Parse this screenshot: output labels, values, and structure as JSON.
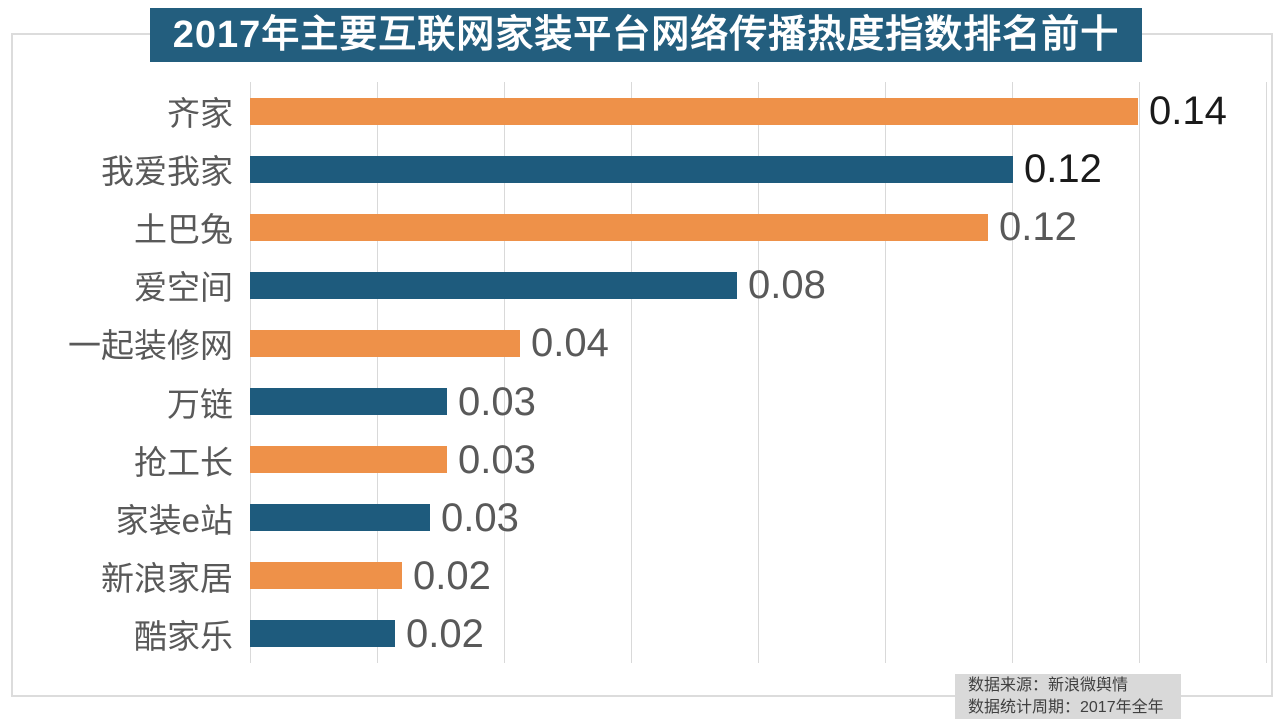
{
  "title": {
    "text": "2017年主要互联网家装平台网络传播热度指数排名前十",
    "bg_color": "#235E7E",
    "text_color": "#FFFFFF"
  },
  "chart_data": {
    "type": "bar",
    "orientation": "horizontal",
    "title": "2017年主要互联网家装平台网络传播热度指数排名前十",
    "categories": [
      "齐家",
      "我爱我家",
      "土巴兔",
      "爱空间",
      "一起装修网",
      "万链",
      "抢工长",
      "家装e站",
      "新浪家居",
      "酷家乐"
    ],
    "values": [
      0.14,
      0.12,
      0.12,
      0.08,
      0.04,
      0.03,
      0.03,
      0.03,
      0.02,
      0.02
    ],
    "value_labels": [
      "0.14",
      "0.12",
      "0.12",
      "0.08",
      "0.04",
      "0.03",
      "0.03",
      "0.03",
      "0.02",
      "0.02"
    ],
    "bar_lengths_est": [
      0.1398,
      0.1202,
      0.1162,
      0.0767,
      0.0425,
      0.031,
      0.031,
      0.0283,
      0.0239,
      0.0228
    ],
    "bar_colors": [
      "#EE9149",
      "#1E5B7D",
      "#EE9149",
      "#1E5B7D",
      "#EE9149",
      "#1E5B7D",
      "#EE9149",
      "#1E5B7D",
      "#EE9149",
      "#1E5B7D"
    ],
    "value_label_colors": [
      "#1A1A1A",
      "#1A1A1A",
      "#595959",
      "#595959",
      "#595959",
      "#595959",
      "#595959",
      "#595959",
      "#595959",
      "#595959"
    ],
    "category_label_color": "#595959",
    "xlabel": "",
    "ylabel": "",
    "xlim": [
      0,
      0.16
    ],
    "grid_step": 0.02,
    "grid": true,
    "legend": false,
    "gridline_color": "#D9D9D9"
  },
  "footer": {
    "line1": "数据来源：新浪微舆情",
    "line2": "数据统计周期：2017年全年",
    "bg_color": "#D9D9D9"
  }
}
